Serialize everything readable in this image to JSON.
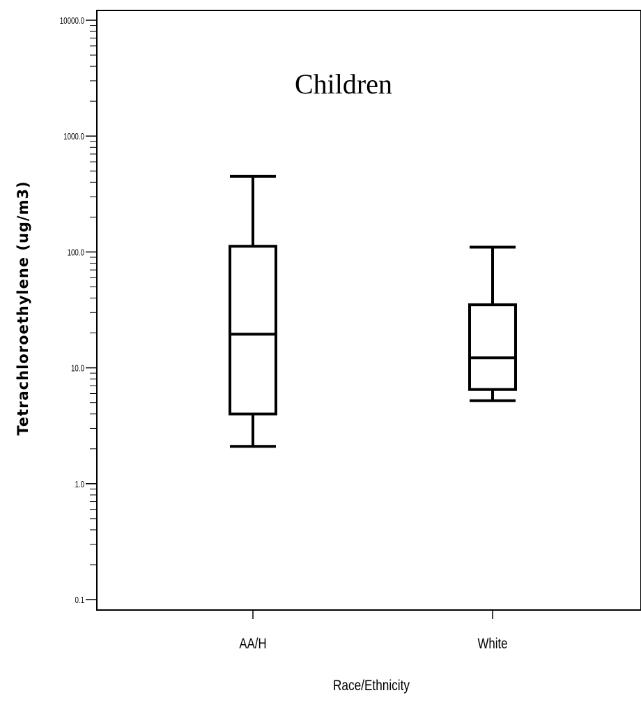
{
  "chart_data": {
    "type": "box",
    "title": "Children",
    "xlabel": "Race/Ethnicity",
    "ylabel": "Tetrachloroethylene  (ug/m3)",
    "yscale": "log",
    "ylim": [
      0.1,
      10000
    ],
    "yticks": [
      {
        "value": 0.1,
        "label": "0.1"
      },
      {
        "value": 1,
        "label": "1.0"
      },
      {
        "value": 10,
        "label": "10.0"
      },
      {
        "value": 100,
        "label": "100.0"
      },
      {
        "value": 1000,
        "label": "1000.0"
      },
      {
        "value": 10000,
        "label": "10000.0"
      }
    ],
    "categories": [
      "AA/H",
      "White"
    ],
    "boxes": [
      {
        "category": "AA/H",
        "min": 2.1,
        "q1": 4.0,
        "median": 19.5,
        "q3": 112,
        "max": 450
      },
      {
        "category": "White",
        "min": 5.2,
        "q1": 6.5,
        "median": 12.2,
        "q3": 35,
        "max": 110
      }
    ],
    "colors": {
      "stroke": "#000000",
      "background": "#ffffff"
    }
  }
}
